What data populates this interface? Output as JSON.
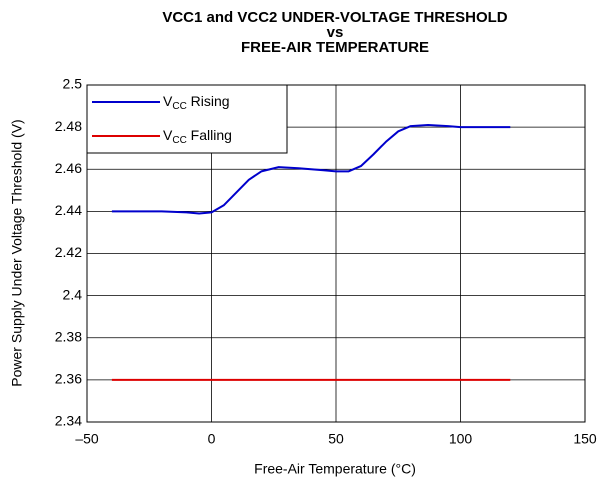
{
  "chart_data": {
    "type": "line",
    "title": [
      "VCC1 and VCC2 UNDER-VOLTAGE THRESHOLD",
      "vs",
      "FREE-AIR TEMPERATURE"
    ],
    "x_label": "Free-Air Temperature (°C)",
    "y_label": "Power Supply Under Voltage Threshold (V)",
    "series": [
      {
        "name": "VCC Rising",
        "color": "#0000cc",
        "x": [
          -40,
          -20,
          -10,
          -5,
          0,
          5,
          10,
          15,
          20,
          27,
          35,
          40,
          45,
          50,
          55,
          60,
          65,
          70,
          75,
          80,
          87,
          95,
          100,
          110,
          120
        ],
        "values": [
          2.44,
          2.44,
          2.4395,
          2.439,
          2.4395,
          2.443,
          2.449,
          2.455,
          2.459,
          2.461,
          2.4605,
          2.46,
          2.4595,
          2.459,
          2.459,
          2.4615,
          2.467,
          2.473,
          2.478,
          2.4805,
          2.481,
          2.4805,
          2.48,
          2.48,
          2.48
        ]
      },
      {
        "name": "VCC Falling",
        "color": "#dd0000",
        "x": [
          -40,
          120
        ],
        "values": [
          2.36,
          2.36
        ]
      }
    ],
    "xlim": [
      -50,
      150
    ],
    "xticks": [
      {
        "value": -50,
        "label": "–50"
      },
      0,
      50,
      100,
      150
    ],
    "ylim": [
      2.34,
      2.5
    ],
    "yticks": [
      2.34,
      2.36,
      2.38,
      2.4,
      2.42,
      2.44,
      2.46,
      2.48,
      2.5
    ],
    "grid": true,
    "legend": "upper left"
  }
}
